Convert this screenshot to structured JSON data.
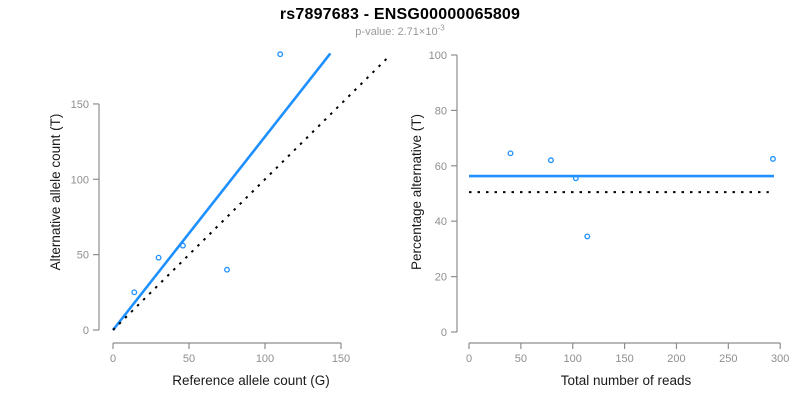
{
  "header": {
    "title": "rs7897683 - ENSG00000065809",
    "pvalue_text": "p-value: 2.71×10",
    "pvalue_exponent": "-3"
  },
  "colors": {
    "accent_blue": "#1E90FF",
    "axis_gray": "#8E8E8E",
    "tick_label_gray": "#8E8E8E",
    "axis_title_black": "#1a1a1a",
    "reference_line_black": "#000000",
    "subtitle_gray": "#999999",
    "background": "#ffffff"
  },
  "chart_data": [
    {
      "type": "scatter",
      "name": "allele-counts-scatter",
      "title": "",
      "xlabel": "Reference allele count (G)",
      "ylabel": "Alternative allele count (T)",
      "xlim": [
        0,
        181
      ],
      "ylim": [
        0,
        184
      ],
      "xticks": [
        0,
        50,
        100,
        150
      ],
      "yticks": [
        0,
        50,
        100,
        150
      ],
      "grid": false,
      "legend": null,
      "marker": "open-circle",
      "points": [
        {
          "x": 14,
          "y": 25
        },
        {
          "x": 30,
          "y": 48
        },
        {
          "x": 46,
          "y": 56
        },
        {
          "x": 75,
          "y": 40
        },
        {
          "x": 110,
          "y": 183
        }
      ],
      "lines": [
        {
          "name": "fit-line",
          "style": "solid",
          "color": "accent",
          "x1": 0,
          "y1": 0,
          "x2": 143,
          "y2": 183.5
        },
        {
          "name": "identity-line",
          "style": "dotted",
          "color": "black",
          "x1": 0,
          "y1": 0,
          "x2": 181,
          "y2": 181
        }
      ]
    },
    {
      "type": "scatter",
      "name": "percentage-vs-reads-scatter",
      "title": "",
      "xlabel": "Total number of reads",
      "ylabel": "Percentage alternative (T)",
      "xlim": [
        0,
        307
      ],
      "ylim": [
        0,
        104
      ],
      "xticks": [
        0,
        50,
        100,
        150,
        200,
        250,
        300
      ],
      "yticks": [
        0,
        20,
        40,
        60,
        80,
        100
      ],
      "grid": false,
      "legend": null,
      "marker": "open-circle",
      "points": [
        {
          "x": 40,
          "y": 64.5
        },
        {
          "x": 79,
          "y": 62
        },
        {
          "x": 103,
          "y": 55.5
        },
        {
          "x": 114,
          "y": 34.5
        },
        {
          "x": 293,
          "y": 62.5
        }
      ],
      "lines": [
        {
          "name": "mean-percentage-line",
          "style": "solid",
          "color": "accent",
          "x1": 0,
          "y1": 56.3,
          "x2": 294,
          "y2": 56.3
        },
        {
          "name": "expected-50pct-line",
          "style": "dotted",
          "color": "black",
          "x1": 0,
          "y1": 50.5,
          "x2": 289,
          "y2": 50.5
        }
      ]
    }
  ]
}
